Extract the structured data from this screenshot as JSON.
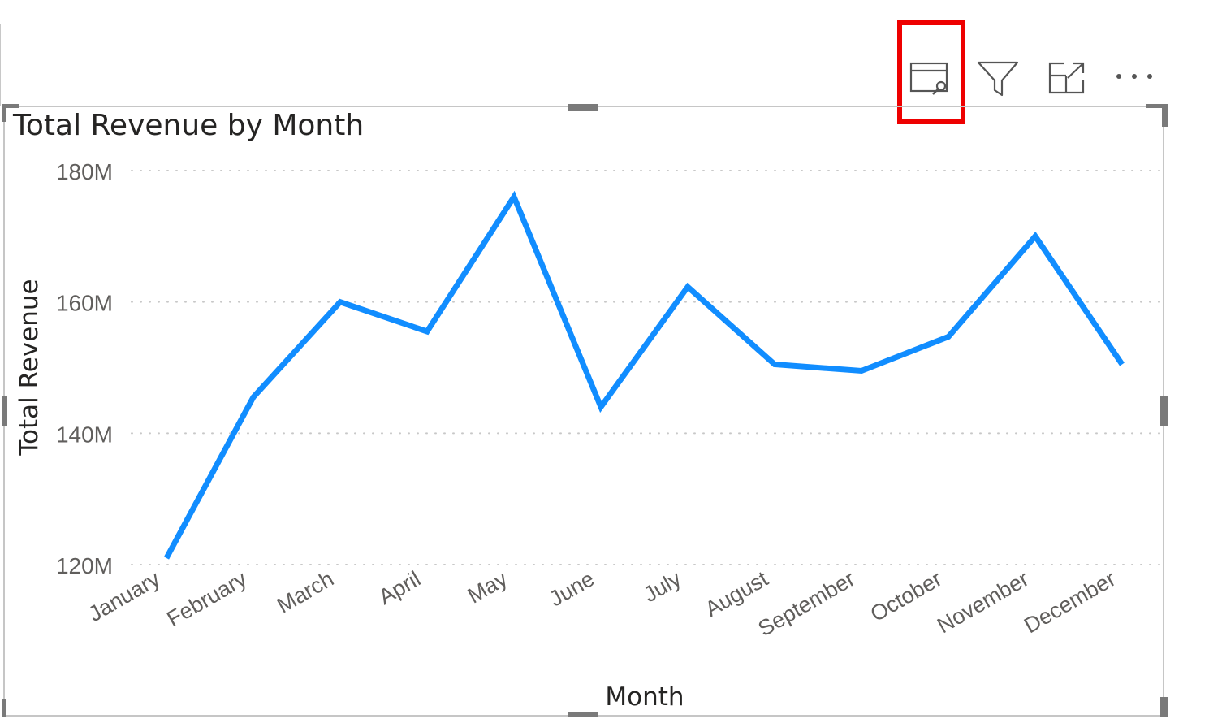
{
  "visual_header": {
    "focus_mode_icon": "focus-mode-icon",
    "filter_icon": "filter-icon",
    "expand_icon": "expand-icon",
    "more_options_icon": "more-options-icon",
    "highlight_color": "#ee0000"
  },
  "chart_data": {
    "type": "line",
    "title": "Total Revenue by Month",
    "xlabel": "Month",
    "ylabel": "Total Revenue",
    "categories": [
      "January",
      "February",
      "March",
      "April",
      "May",
      "June",
      "July",
      "August",
      "September",
      "October",
      "November",
      "December"
    ],
    "series": [
      {
        "values": [
          121,
          145.5,
          160,
          155.5,
          176,
          144,
          162.3,
          150.5,
          149.5,
          154.7,
          170,
          150.5
        ]
      }
    ],
    "y_ticks": [
      {
        "value": 120,
        "label": "120M"
      },
      {
        "value": 140,
        "label": "140M"
      },
      {
        "value": 160,
        "label": "160M"
      },
      {
        "value": 180,
        "label": "180M"
      }
    ],
    "ylim": [
      120,
      180
    ],
    "y_unit": "M",
    "grid": "horizontal dotted",
    "line_color": "#118dff",
    "legend": "none"
  }
}
